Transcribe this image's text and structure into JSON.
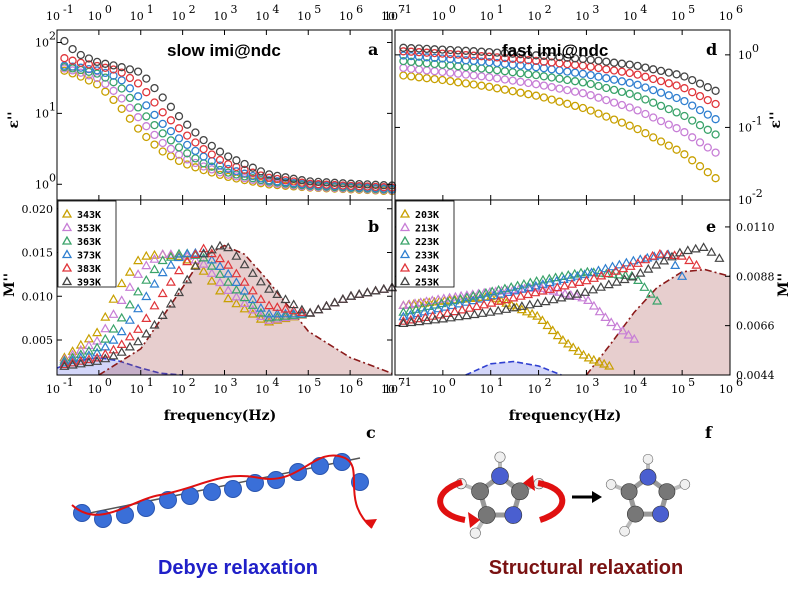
{
  "colors": [
    "#c8a000",
    "#c77ed6",
    "#3aa36a",
    "#2f7fd0",
    "#e0353a",
    "#444444"
  ],
  "chart_data": [
    {
      "type": "scatter",
      "panel": "a",
      "title": "slow imi@ndc",
      "ylabel": "ε''",
      "xscale": "log",
      "yscale": "log",
      "xlim": [
        0.1,
        10000000
      ],
      "ylim": [
        0.6,
        150
      ],
      "series": [
        {
          "name": "343K",
          "x": [
            0.15,
            0.3,
            1,
            3,
            10,
            30,
            100,
            300,
            1000,
            10000.0,
            100000.0,
            1000000.0,
            10000000.0
          ],
          "values": [
            40,
            35,
            25,
            13,
            5.5,
            3,
            2,
            1.6,
            1.3,
            1.0,
            0.9,
            0.85,
            0.8
          ]
        },
        {
          "name": "353K",
          "x": [
            0.15,
            0.3,
            1,
            3,
            10,
            30,
            100,
            300,
            1000,
            10000.0,
            100000.0,
            1000000.0,
            10000000.0
          ],
          "values": [
            43,
            39,
            31,
            18,
            8,
            4,
            2.4,
            1.8,
            1.4,
            1.05,
            0.92,
            0.87,
            0.82
          ]
        },
        {
          "name": "363K",
          "x": [
            0.15,
            0.3,
            1,
            3,
            10,
            30,
            100,
            300,
            1000,
            10000.0,
            100000.0,
            1000000.0,
            10000000.0
          ],
          "values": [
            45,
            42,
            36,
            25,
            11,
            5.5,
            3,
            2,
            1.5,
            1.1,
            0.95,
            0.89,
            0.84
          ]
        },
        {
          "name": "373K",
          "x": [
            0.15,
            0.3,
            1,
            3,
            10,
            30,
            100,
            300,
            1000,
            10000.0,
            100000.0,
            1000000.0,
            10000000.0
          ],
          "values": [
            47,
            45,
            40,
            32,
            16,
            7.5,
            4,
            2.5,
            1.7,
            1.15,
            0.98,
            0.92,
            0.86
          ]
        },
        {
          "name": "383K",
          "x": [
            0.15,
            0.3,
            1,
            3,
            10,
            30,
            100,
            300,
            1000,
            10000.0,
            100000.0,
            1000000.0,
            10000000.0
          ],
          "values": [
            60,
            53,
            46,
            40,
            25,
            11,
            5.5,
            3.2,
            2,
            1.25,
            1.02,
            0.95,
            0.9
          ]
        },
        {
          "name": "393K",
          "x": [
            0.15,
            0.3,
            1,
            3,
            10,
            30,
            100,
            300,
            1000,
            10000.0,
            100000.0,
            1000000.0,
            10000000.0
          ],
          "values": [
            105,
            70,
            52,
            46,
            38,
            18,
            8,
            4.3,
            2.6,
            1.4,
            1.1,
            1.02,
            0.96
          ]
        }
      ]
    },
    {
      "type": "scatter",
      "panel": "d",
      "title": "fast imi@ndc",
      "ylabel": "ε''",
      "xscale": "log",
      "yscale": "log",
      "xlim": [
        0.1,
        1000000
      ],
      "ylim": [
        0.01,
        2.2
      ],
      "series": [
        {
          "name": "203K",
          "x": [
            0.15,
            1,
            10,
            100,
            1000,
            10000.0,
            100000.0,
            500000.0
          ],
          "values": [
            0.52,
            0.45,
            0.36,
            0.27,
            0.18,
            0.1,
            0.045,
            0.02
          ]
        },
        {
          "name": "213K",
          "x": [
            0.15,
            1,
            10,
            100,
            1000,
            10000.0,
            100000.0,
            500000.0
          ],
          "values": [
            0.66,
            0.58,
            0.49,
            0.39,
            0.29,
            0.18,
            0.09,
            0.045
          ]
        },
        {
          "name": "223K",
          "x": [
            0.15,
            1,
            10,
            100,
            1000,
            10000.0,
            100000.0,
            500000.0
          ],
          "values": [
            0.82,
            0.73,
            0.63,
            0.52,
            0.41,
            0.28,
            0.15,
            0.08
          ]
        },
        {
          "name": "233K",
          "x": [
            0.15,
            1,
            10,
            100,
            1000,
            10000.0,
            100000.0,
            500000.0
          ],
          "values": [
            0.98,
            0.89,
            0.79,
            0.67,
            0.54,
            0.4,
            0.24,
            0.13
          ]
        },
        {
          "name": "243K",
          "x": [
            0.15,
            1,
            10,
            100,
            1000,
            10000.0,
            100000.0,
            500000.0
          ],
          "values": [
            1.12,
            1.04,
            0.94,
            0.82,
            0.7,
            0.55,
            0.36,
            0.21
          ]
        },
        {
          "name": "253K",
          "x": [
            0.15,
            1,
            10,
            100,
            1000,
            10000.0,
            100000.0,
            500000.0
          ],
          "values": [
            1.25,
            1.18,
            1.09,
            0.98,
            0.87,
            0.72,
            0.52,
            0.32
          ]
        }
      ]
    },
    {
      "type": "scatter",
      "panel": "b",
      "ylabel": "M''",
      "xlabel": "frequency(Hz)",
      "xscale": "log",
      "xlim": [
        0.1,
        10000000
      ],
      "ylim": [
        0.001,
        0.021
      ],
      "yticks": [
        "0.005",
        "0.010",
        "0.015",
        "0.020"
      ],
      "series": [
        {
          "name": "343K",
          "x": [
            0.15,
            1,
            3,
            10,
            30,
            100,
            300,
            1000,
            10000.0,
            100000.0,
            1000000.0,
            10000000.0
          ],
          "values": [
            0.003,
            0.006,
            0.011,
            0.0145,
            0.0148,
            0.0145,
            0.013,
            0.01,
            0.007,
            0.008,
            0.01,
            0.011
          ]
        },
        {
          "name": "353K",
          "x": [
            0.15,
            1,
            3,
            10,
            30,
            100,
            300,
            1000,
            10000.0,
            100000.0,
            1000000.0,
            10000000.0
          ],
          "values": [
            0.0028,
            0.005,
            0.009,
            0.013,
            0.0148,
            0.0148,
            0.0138,
            0.011,
            0.0072,
            0.008,
            0.01,
            0.011
          ]
        },
        {
          "name": "363K",
          "x": [
            0.15,
            1,
            3,
            10,
            30,
            100,
            300,
            1000,
            10000.0,
            100000.0,
            1000000.0,
            10000000.0
          ],
          "values": [
            0.0026,
            0.0042,
            0.007,
            0.011,
            0.014,
            0.015,
            0.0145,
            0.012,
            0.0075,
            0.008,
            0.01,
            0.011
          ]
        },
        {
          "name": "373K",
          "x": [
            0.15,
            1,
            3,
            10,
            30,
            100,
            300,
            1000,
            10000.0,
            100000.0,
            1000000.0,
            10000000.0
          ],
          "values": [
            0.0024,
            0.0036,
            0.0055,
            0.009,
            0.0125,
            0.0148,
            0.015,
            0.013,
            0.008,
            0.008,
            0.01,
            0.011
          ]
        },
        {
          "name": "383K",
          "x": [
            0.15,
            1,
            3,
            10,
            30,
            100,
            300,
            1000,
            10000.0,
            100000.0,
            1000000.0,
            10000000.0
          ],
          "values": [
            0.0022,
            0.003,
            0.0042,
            0.0065,
            0.01,
            0.0135,
            0.0155,
            0.014,
            0.009,
            0.008,
            0.01,
            0.011
          ]
        },
        {
          "name": "393K",
          "x": [
            0.15,
            1,
            3,
            10,
            30,
            100,
            300,
            1000,
            10000.0,
            100000.0,
            1000000.0,
            10000000.0
          ],
          "values": [
            0.002,
            0.0026,
            0.0034,
            0.005,
            0.0075,
            0.011,
            0.0148,
            0.016,
            0.011,
            0.008,
            0.01,
            0.011
          ]
        }
      ],
      "fits": [
        {
          "name": "fit-blue",
          "color": "#3040d0",
          "x": [
            0.1,
            0.3,
            1,
            3,
            10,
            30,
            100
          ],
          "values": [
            0.0018,
            0.0026,
            0.003,
            0.0026,
            0.0018,
            0.0012,
            0.001
          ]
        },
        {
          "name": "fit-red",
          "color": "#8b1a1a",
          "x": [
            1,
            10,
            100,
            300,
            1000,
            3000,
            10000.0,
            100000.0,
            1000000.0,
            10000000.0
          ],
          "values": [
            0.001,
            0.004,
            0.011,
            0.0145,
            0.0158,
            0.0148,
            0.012,
            0.006,
            0.003,
            0.0012
          ]
        }
      ]
    },
    {
      "type": "scatter",
      "panel": "e",
      "ylabel": "M''",
      "xlabel": "frequency(Hz)",
      "xscale": "log",
      "xlim": [
        0.1,
        1000000
      ],
      "ylim": [
        0.0044,
        0.0122
      ],
      "yticks": [
        "0.0044",
        "0.0066",
        "0.0088",
        "0.0110"
      ],
      "series": [
        {
          "name": "203K",
          "x": [
            0.15,
            1,
            10,
            100,
            300,
            1000,
            3000
          ],
          "values": [
            0.0075,
            0.0077,
            0.0079,
            0.007,
            0.006,
            0.0052,
            0.0048
          ]
        },
        {
          "name": "213K",
          "x": [
            0.15,
            1,
            10,
            100,
            1000,
            3000,
            10000.0
          ],
          "values": [
            0.0075,
            0.0078,
            0.0081,
            0.0083,
            0.0078,
            0.0068,
            0.006
          ]
        },
        {
          "name": "223K",
          "x": [
            0.15,
            1,
            10,
            100,
            1000,
            10000.0,
            30000.0
          ],
          "values": [
            0.0072,
            0.0076,
            0.0081,
            0.0086,
            0.009,
            0.0088,
            0.0077
          ]
        },
        {
          "name": "233K",
          "x": [
            0.15,
            1,
            10,
            100,
            1000,
            10000.0,
            50000.0,
            100000.0
          ],
          "values": [
            0.007,
            0.0074,
            0.0079,
            0.0084,
            0.0089,
            0.0095,
            0.0098,
            0.0088
          ]
        },
        {
          "name": "243K",
          "x": [
            0.15,
            1,
            10,
            100,
            1000,
            10000.0,
            30000.0,
            100000.0,
            200000.0
          ],
          "values": [
            0.0068,
            0.0071,
            0.0076,
            0.0081,
            0.0086,
            0.0093,
            0.0098,
            0.0097,
            0.0093
          ]
        },
        {
          "name": "253K",
          "x": [
            0.15,
            1,
            10,
            100,
            1000,
            10000.0,
            100000.0,
            300000.0,
            600000.0
          ],
          "values": [
            0.0067,
            0.0069,
            0.0072,
            0.0076,
            0.0081,
            0.0088,
            0.0099,
            0.0101,
            0.0096
          ]
        }
      ],
      "fits": [
        {
          "name": "fit-blue",
          "color": "#3040d0",
          "x": [
            3,
            10,
            30,
            100,
            300
          ],
          "values": [
            0.0044,
            0.0049,
            0.005,
            0.0048,
            0.0044
          ]
        },
        {
          "name": "fit-red",
          "color": "#8b1a1a",
          "x": [
            1000,
            3000,
            10000.0,
            30000.0,
            100000.0,
            300000.0,
            1000000.0
          ],
          "values": [
            0.0044,
            0.0057,
            0.0072,
            0.0083,
            0.009,
            0.0091,
            0.0088
          ]
        }
      ]
    }
  ],
  "panel_letters": {
    "a": "a",
    "b": "b",
    "c": "c",
    "d": "d",
    "e": "e",
    "f": "f"
  },
  "left_top_ticks": [
    "10",
    "10",
    "10",
    "10",
    "10",
    "10",
    "10",
    "10",
    "10"
  ],
  "labels": {
    "debye": "Debye relaxation",
    "structural": "Structural relaxation",
    "xlabel_left": "frequency(Hz)",
    "xlabel_right": "frequency(Hz)",
    "eps_left": "ε''",
    "eps_right": "ε''",
    "m_left": "M''",
    "m_right": "M''"
  }
}
